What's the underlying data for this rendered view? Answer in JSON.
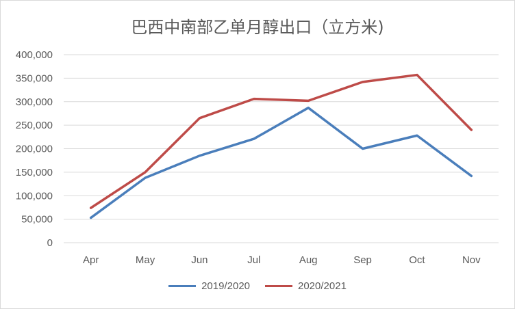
{
  "chart_data": {
    "type": "line",
    "title": "巴西中南部乙单月醇出口（立方米)",
    "xlabel": "",
    "ylabel": "",
    "categories": [
      "Apr",
      "May",
      "Jun",
      "Jul",
      "Aug",
      "Sep",
      "Oct",
      "Nov"
    ],
    "ylim": [
      0,
      400000
    ],
    "yticks": [
      "0",
      "50,000",
      "100,000",
      "150,000",
      "200,000",
      "250,000",
      "300,000",
      "350,000",
      "400,000"
    ],
    "ytick_values": [
      0,
      50000,
      100000,
      150000,
      200000,
      250000,
      300000,
      350000,
      400000
    ],
    "grid": true,
    "legend_position": "bottom",
    "series": [
      {
        "name": "2019/2020",
        "color": "#4a7ebb",
        "values": [
          53000,
          138000,
          185000,
          221000,
          287000,
          200000,
          228000,
          142000
        ]
      },
      {
        "name": "2020/2021",
        "color": "#be4b48",
        "values": [
          74000,
          150000,
          265000,
          306000,
          302000,
          342000,
          357000,
          240000
        ]
      }
    ]
  }
}
